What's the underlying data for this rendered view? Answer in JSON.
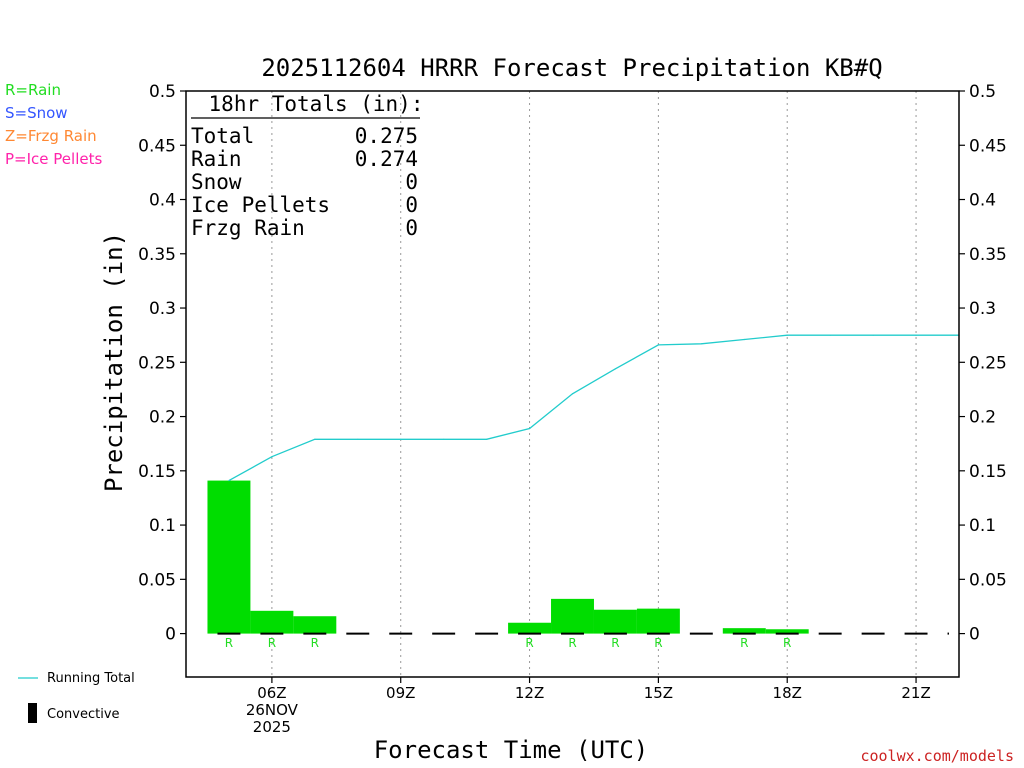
{
  "title": "2025112604 HRRR Forecast Precipitation KB#Q",
  "watermark": "coolwx.com/models",
  "legend_types": [
    {
      "label": "R=Rain",
      "color": "#22dd22"
    },
    {
      "label": "S=Snow",
      "color": "#3355ff"
    },
    {
      "label": "Z=Frzg Rain",
      "color": "#ff8833"
    },
    {
      "label": "P=Ice Pellets",
      "color": "#ff22aa"
    }
  ],
  "legend_bottom": {
    "running_total": "Running Total",
    "convective": "Convective"
  },
  "totals_box": {
    "heading": "18hr Totals (in):",
    "rows": [
      {
        "label": "Total",
        "value": "0.275"
      },
      {
        "label": "Rain",
        "value": "0.274"
      },
      {
        "label": "Snow",
        "value": "0"
      },
      {
        "label": "Ice Pellets",
        "value": "0"
      },
      {
        "label": "Frzg Rain",
        "value": "0"
      }
    ]
  },
  "chart_data": {
    "type": "bar",
    "title": "2025112604 HRRR Forecast Precipitation KB#Q",
    "xlabel": "Forecast Time (UTC)",
    "ylabel": "Precipitation (in)",
    "ylim": [
      -0.04,
      0.5
    ],
    "yticks": [
      0,
      0.05,
      0.1,
      0.15,
      0.2,
      0.25,
      0.3,
      0.35,
      0.4,
      0.45,
      0.5
    ],
    "ytick_labels": [
      "0",
      "0.05",
      "0.1",
      "0.15",
      "0.2",
      "0.25",
      "0.3",
      "0.35",
      "0.4",
      "0.45",
      "0.5"
    ],
    "xlim_hours": [
      4,
      22
    ],
    "xticks": [
      {
        "hour": 6,
        "lines": [
          "06Z",
          "26NOV",
          "2025"
        ]
      },
      {
        "hour": 9,
        "lines": [
          "09Z"
        ]
      },
      {
        "hour": 12,
        "lines": [
          "12Z"
        ]
      },
      {
        "hour": 15,
        "lines": [
          "15Z"
        ]
      },
      {
        "hour": 18,
        "lines": [
          "18Z"
        ]
      },
      {
        "hour": 21,
        "lines": [
          "21Z"
        ]
      }
    ],
    "grid": "vertical-dotted",
    "bar_color": "#00dd00",
    "line_color": "#22cccc",
    "bars": [
      {
        "start": 4.5,
        "end": 5.5,
        "value": 0.141,
        "type": "R"
      },
      {
        "start": 5.5,
        "end": 6.5,
        "value": 0.021,
        "type": "R"
      },
      {
        "start": 6.5,
        "end": 7.5,
        "value": 0.016,
        "type": "R"
      },
      {
        "start": 7.5,
        "end": 8.5,
        "value": 0.0,
        "type": ""
      },
      {
        "start": 8.5,
        "end": 9.5,
        "value": 0.0,
        "type": ""
      },
      {
        "start": 9.5,
        "end": 10.5,
        "value": 0.0,
        "type": ""
      },
      {
        "start": 10.5,
        "end": 11.5,
        "value": 0.0,
        "type": ""
      },
      {
        "start": 11.5,
        "end": 12.5,
        "value": 0.01,
        "type": "R"
      },
      {
        "start": 12.5,
        "end": 13.5,
        "value": 0.032,
        "type": "R"
      },
      {
        "start": 13.5,
        "end": 14.5,
        "value": 0.022,
        "type": "R"
      },
      {
        "start": 14.5,
        "end": 15.5,
        "value": 0.023,
        "type": "R"
      },
      {
        "start": 15.5,
        "end": 16.5,
        "value": 0.0,
        "type": ""
      },
      {
        "start": 16.5,
        "end": 17.5,
        "value": 0.005,
        "type": "R"
      },
      {
        "start": 17.5,
        "end": 18.5,
        "value": 0.004,
        "type": "R"
      },
      {
        "start": 18.5,
        "end": 19.5,
        "value": 0.0,
        "type": ""
      },
      {
        "start": 19.5,
        "end": 20.5,
        "value": 0.0,
        "type": ""
      },
      {
        "start": 20.5,
        "end": 21.5,
        "value": 0.0,
        "type": ""
      },
      {
        "start": 21.5,
        "end": 22.0,
        "value": 0.0,
        "type": ""
      }
    ],
    "running_total": [
      {
        "hour": 5,
        "value": 0.141
      },
      {
        "hour": 6,
        "value": 0.163
      },
      {
        "hour": 7,
        "value": 0.179
      },
      {
        "hour": 8,
        "value": 0.179
      },
      {
        "hour": 9,
        "value": 0.179
      },
      {
        "hour": 10,
        "value": 0.179
      },
      {
        "hour": 11,
        "value": 0.179
      },
      {
        "hour": 12,
        "value": 0.189
      },
      {
        "hour": 13,
        "value": 0.221
      },
      {
        "hour": 14,
        "value": 0.244
      },
      {
        "hour": 15,
        "value": 0.266
      },
      {
        "hour": 16,
        "value": 0.267
      },
      {
        "hour": 17,
        "value": 0.271
      },
      {
        "hour": 18,
        "value": 0.275
      },
      {
        "hour": 19,
        "value": 0.275
      },
      {
        "hour": 20,
        "value": 0.275
      },
      {
        "hour": 21,
        "value": 0.275
      },
      {
        "hour": 22,
        "value": 0.275
      }
    ]
  }
}
